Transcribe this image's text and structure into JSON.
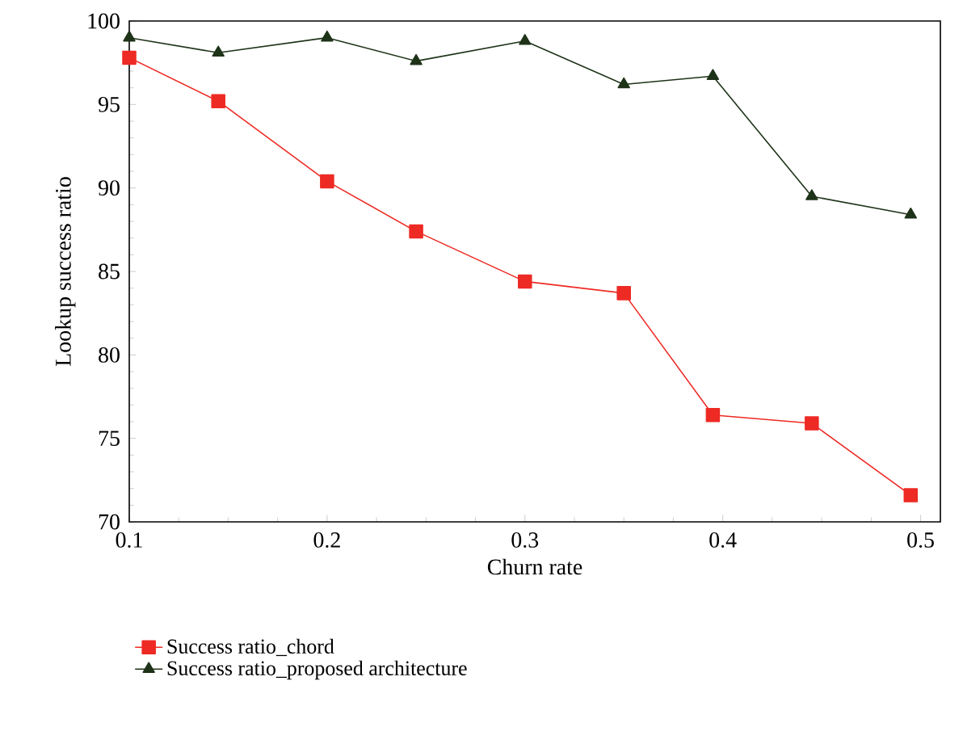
{
  "chart_data": {
    "type": "line",
    "xlabel": "Churn rate",
    "ylabel": "Lookup success ratio",
    "x": [
      0.1,
      0.145,
      0.2,
      0.245,
      0.3,
      0.35,
      0.395,
      0.445,
      0.495
    ],
    "series": [
      {
        "name": "Success ratio_chord",
        "color": "#ee2a24",
        "marker": "square",
        "values": [
          97.8,
          95.2,
          90.4,
          87.4,
          84.4,
          83.7,
          76.4,
          75.9,
          71.6
        ]
      },
      {
        "name": "Success ratio_proposed architecture",
        "color": "#1e3318",
        "marker": "triangle",
        "values": [
          99.0,
          98.1,
          99.0,
          97.6,
          98.8,
          96.2,
          96.7,
          89.5,
          88.4
        ]
      }
    ],
    "xlim": [
      0.1,
      0.51
    ],
    "ylim": [
      70,
      100
    ],
    "xticks": [
      0.1,
      0.2,
      0.3,
      0.4,
      0.5
    ],
    "yticks": [
      70,
      75,
      80,
      85,
      90,
      95,
      100
    ],
    "legend": "bottom",
    "line_style": "solid"
  }
}
